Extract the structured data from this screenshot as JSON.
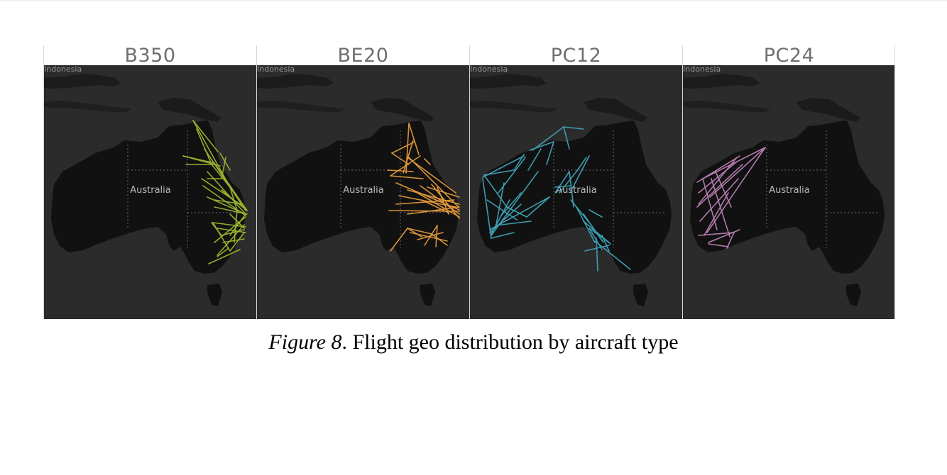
{
  "figure": {
    "panels": [
      {
        "id": "b350",
        "title": "B350",
        "route_color": "#9bb52f",
        "map_label": "Australia",
        "neighbor_label": "Indonesia"
      },
      {
        "id": "be20",
        "title": "BE20",
        "route_color": "#e39a3b",
        "map_label": "Australia",
        "neighbor_label": "Indonesia"
      },
      {
        "id": "pc12",
        "title": "PC12",
        "route_color": "#3fa3b8",
        "map_label": "Australia",
        "neighbor_label": "Indonesia"
      },
      {
        "id": "pc24",
        "title": "PC24",
        "route_color": "#b980b5",
        "map_label": "Australia",
        "neighbor_label": "Indonesia"
      }
    ],
    "colors": {
      "map_background": "#2b2b2b",
      "land": "#111111",
      "state_border": "#6a6a6a"
    }
  },
  "caption": {
    "label": "Figure 8",
    "text": ". Flight geo distribution by aircraft type"
  }
}
